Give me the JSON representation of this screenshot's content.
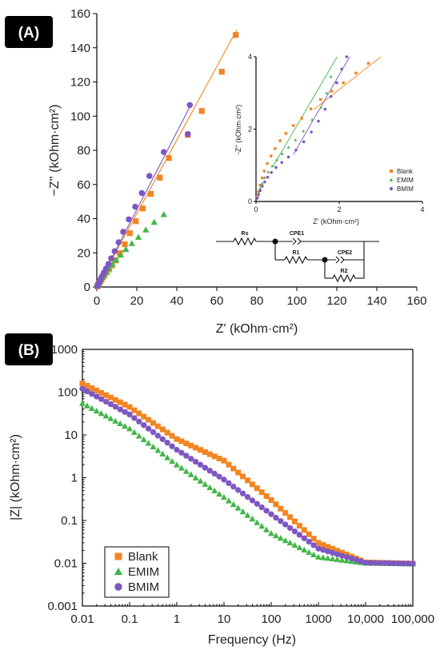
{
  "panels": {
    "a_label": "(A)",
    "b_label": "(B)"
  },
  "colors": {
    "Blank": "#f28522",
    "EMIM": "#43b649",
    "BMIM": "#7e57c2"
  },
  "chart_data": [
    {
      "type": "scatter",
      "title": "",
      "xlabel": "Z' (kOhm·cm²)",
      "ylabel": "−Z'' (kOhm·cm²)",
      "xlim": [
        0,
        160
      ],
      "ylim": [
        0,
        160
      ],
      "xticks": [
        0,
        20,
        40,
        60,
        80,
        100,
        120,
        140,
        160
      ],
      "yticks": [
        0,
        20,
        40,
        60,
        80,
        100,
        120,
        140,
        160
      ],
      "series": [
        {
          "name": "Blank",
          "marker": "square",
          "points": [
            [
              0.3,
              0.4
            ],
            [
              0.5,
              0.9
            ],
            [
              0.8,
              1.6
            ],
            [
              1.2,
              2.4
            ],
            [
              1.7,
              3.3
            ],
            [
              2.3,
              4.4
            ],
            [
              3,
              5.6
            ],
            [
              3.8,
              6.9
            ],
            [
              4.8,
              8.5
            ],
            [
              6,
              10.3
            ],
            [
              7.5,
              12.6
            ],
            [
              9.3,
              15.6
            ],
            [
              11.5,
              19.8
            ],
            [
              14,
              25
            ],
            [
              16.5,
              31.5
            ],
            [
              19.5,
              38.5
            ],
            [
              23,
              46
            ],
            [
              27,
              54.5
            ],
            [
              31.5,
              64
            ],
            [
              36,
              75.5
            ],
            [
              45.5,
              89
            ],
            [
              52.5,
              103
            ],
            [
              62.5,
              126
            ],
            [
              69.5,
              147.5
            ]
          ],
          "fit": [
            [
              0,
              0
            ],
            [
              70,
              150.5
            ]
          ]
        },
        {
          "name": "EMIM",
          "marker": "triangle",
          "points": [
            [
              0.3,
              0.6
            ],
            [
              0.6,
              1.3
            ],
            [
              1,
              2.2
            ],
            [
              1.5,
              3.2
            ],
            [
              2.1,
              4.4
            ],
            [
              2.9,
              5.8
            ],
            [
              3.8,
              7.3
            ],
            [
              4.9,
              9
            ],
            [
              6.2,
              11
            ],
            [
              7.8,
              13.3
            ],
            [
              9.7,
              15.9
            ],
            [
              12,
              18.8
            ],
            [
              14.6,
              22
            ],
            [
              17.5,
              25.5
            ],
            [
              20.8,
              29.2
            ],
            [
              24.5,
              33.5
            ],
            [
              28.7,
              38
            ],
            [
              33.5,
              42.5
            ]
          ],
          "fit": [
            [
              0,
              0
            ],
            [
              15,
              24
            ]
          ]
        },
        {
          "name": "BMIM",
          "marker": "circle",
          "points": [
            [
              0.3,
              0.7
            ],
            [
              0.6,
              1.5
            ],
            [
              1,
              2.5
            ],
            [
              1.5,
              3.7
            ],
            [
              2.1,
              5.1
            ],
            [
              2.8,
              6.7
            ],
            [
              3.6,
              8.6
            ],
            [
              4.6,
              10.8
            ],
            [
              5.8,
              13.5
            ],
            [
              7.2,
              16.8
            ],
            [
              8.9,
              21
            ],
            [
              10.9,
              26.2
            ],
            [
              13.2,
              32.3
            ],
            [
              16,
              39.6
            ],
            [
              19.2,
              47
            ],
            [
              22.5,
              55
            ],
            [
              26.3,
              65
            ],
            [
              33.5,
              79
            ],
            [
              45.5,
              89.5
            ],
            [
              46.5,
              106.5
            ]
          ],
          "fit": [
            [
              0,
              0
            ],
            [
              47,
              106.5
            ]
          ]
        }
      ]
    },
    {
      "type": "scatter",
      "title": "",
      "xlabel": "Z' (kOhm·cm²)",
      "ylabel": "-Z'' (kOhm·cm²)",
      "xlim": [
        0,
        4
      ],
      "ylim": [
        0,
        4
      ],
      "xticks": [
        0,
        2,
        4
      ],
      "yticks": [
        0,
        2,
        4
      ],
      "legend": [
        "Blank",
        "EMIM",
        "BMIM"
      ],
      "legend_position": "bottom-right",
      "series": [
        {
          "name": "Blank",
          "points": [
            [
              0.03,
              0.12
            ],
            [
              0.06,
              0.27
            ],
            [
              0.1,
              0.45
            ],
            [
              0.15,
              0.65
            ],
            [
              0.2,
              0.84
            ],
            [
              0.27,
              1.05
            ],
            [
              0.36,
              1.26
            ],
            [
              0.46,
              1.46
            ],
            [
              0.58,
              1.68
            ],
            [
              0.72,
              1.88
            ],
            [
              0.9,
              2.1
            ],
            [
              1.1,
              2.3
            ],
            [
              1.32,
              2.56
            ],
            [
              1.55,
              2.82
            ],
            [
              1.82,
              3.05
            ],
            [
              2.1,
              3.28
            ],
            [
              2.4,
              3.55
            ],
            [
              2.7,
              3.82
            ]
          ],
          "fit": [
            [
              1.4,
              2.55
            ],
            [
              3,
              4
            ]
          ]
        },
        {
          "name": "EMIM",
          "points": [
            [
              0.03,
              0.1
            ],
            [
              0.06,
              0.22
            ],
            [
              0.1,
              0.36
            ],
            [
              0.15,
              0.5
            ],
            [
              0.21,
              0.66
            ],
            [
              0.29,
              0.82
            ],
            [
              0.39,
              0.98
            ],
            [
              0.5,
              1.15
            ],
            [
              0.63,
              1.32
            ],
            [
              0.78,
              1.5
            ],
            [
              0.95,
              1.7
            ],
            [
              1.14,
              1.95
            ],
            [
              1.35,
              2.26
            ],
            [
              1.56,
              2.6
            ],
            [
              1.7,
              3
            ],
            [
              1.8,
              3.45
            ]
          ],
          "fit": [
            [
              0.4,
              0.95
            ],
            [
              1.95,
              4
            ]
          ]
        },
        {
          "name": "BMIM",
          "points": [
            [
              0.03,
              0.09
            ],
            [
              0.06,
              0.19
            ],
            [
              0.1,
              0.3
            ],
            [
              0.15,
              0.42
            ],
            [
              0.21,
              0.54
            ],
            [
              0.28,
              0.67
            ],
            [
              0.37,
              0.8
            ],
            [
              0.48,
              0.94
            ],
            [
              0.62,
              1.08
            ],
            [
              0.78,
              1.23
            ],
            [
              0.96,
              1.42
            ],
            [
              1.15,
              1.65
            ],
            [
              1.33,
              1.92
            ],
            [
              1.5,
              2.22
            ],
            [
              1.66,
              2.55
            ],
            [
              1.8,
              2.9
            ],
            [
              1.94,
              3.28
            ],
            [
              2.06,
              3.66
            ],
            [
              2.18,
              4
            ]
          ],
          "fit": [
            [
              0.9,
              1.3
            ],
            [
              2.25,
              4
            ]
          ]
        }
      ]
    },
    {
      "type": "scatter",
      "title": "",
      "xlabel": "Frequency (Hz)",
      "ylabel": "|Z| (kOhm·cm²)",
      "xscale": "log",
      "yscale": "log",
      "xlim": [
        0.01,
        100000
      ],
      "ylim": [
        0.001,
        1000
      ],
      "xticks": [
        "0.01",
        "0.1",
        "1",
        "10",
        "100",
        "1000",
        "10,000",
        "100,000"
      ],
      "yticks": [
        "0.001",
        "0.01",
        "0.1",
        "1",
        "10",
        "100",
        "1000"
      ],
      "legend": [
        "Blank",
        "EMIM",
        "BMIM"
      ],
      "legend_position": "bottom-left",
      "series": [
        {
          "name": "Blank",
          "marker": "square",
          "points": [
            [
              0.01,
              160
            ],
            [
              0.1,
              45
            ],
            [
              1,
              8
            ],
            [
              10,
              2.5
            ],
            [
              100,
              0.3
            ],
            [
              1000,
              0.03
            ],
            [
              10000,
              0.0105
            ],
            [
              100000,
              0.0098
            ]
          ]
        },
        {
          "name": "EMIM",
          "marker": "triangle",
          "points": [
            [
              0.01,
              55
            ],
            [
              0.1,
              14
            ],
            [
              1,
              2
            ],
            [
              10,
              0.35
            ],
            [
              100,
              0.05
            ],
            [
              1000,
              0.014
            ],
            [
              10000,
              0.0101
            ],
            [
              100000,
              0.0097
            ]
          ]
        },
        {
          "name": "BMIM",
          "marker": "circle",
          "points": [
            [
              0.01,
              120
            ],
            [
              0.1,
              30
            ],
            [
              1,
              4.5
            ],
            [
              10,
              0.9
            ],
            [
              100,
              0.14
            ],
            [
              1000,
              0.022
            ],
            [
              10000,
              0.0103
            ],
            [
              100000,
              0.0098
            ]
          ]
        }
      ]
    }
  ],
  "circuit": {
    "labels": [
      "Rs",
      "CPE1",
      "R1",
      "CPE2",
      "R2"
    ]
  }
}
